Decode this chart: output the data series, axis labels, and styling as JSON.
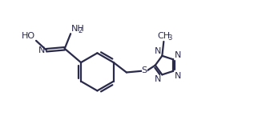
{
  "bg_color": "#ffffff",
  "line_color": "#2a2a4a",
  "line_width": 1.6,
  "font_size": 8.0,
  "small_font_size": 6.0,
  "xlim": [
    -0.5,
    10.5
  ],
  "ylim": [
    -0.2,
    5.8
  ]
}
